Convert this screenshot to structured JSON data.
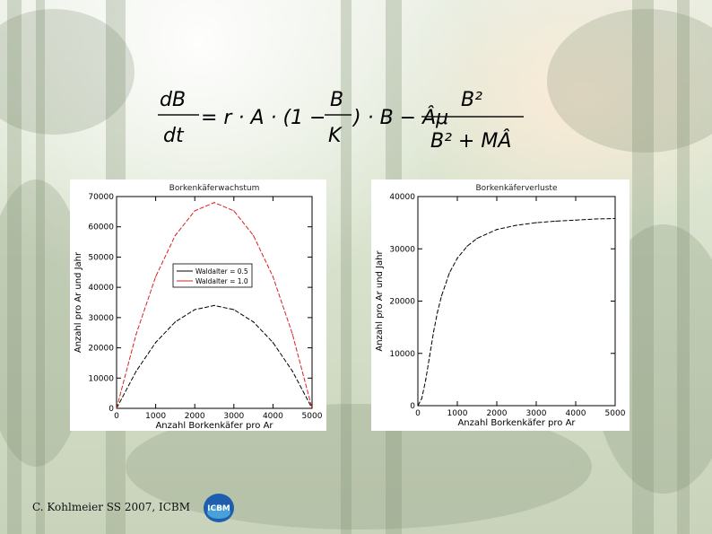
{
  "formula": {
    "lhs_num": "dB",
    "lhs_den": "dt",
    "rhs_1": "= r · A · (1 −",
    "frac_num": "B",
    "frac_den": "K",
    "rhs_2": ") · B − Âμ",
    "frac2_num": "B²",
    "frac2_den": "B² + MÂ"
  },
  "footer": {
    "text": "C. Kohlmeier  SS 2007, ICBM"
  },
  "logo": {
    "text": "ICBM"
  },
  "chart_data": [
    {
      "type": "line",
      "title": "Borkenkäferwachstum",
      "xlabel": "Anzahl Borkenkäfer pro Ar",
      "ylabel": "Anzahl pro Ar und Jahr",
      "xlim": [
        0,
        5000
      ],
      "ylim": [
        0,
        70000
      ],
      "xticks": [
        0,
        1000,
        2000,
        3000,
        4000,
        5000
      ],
      "yticks": [
        0,
        10000,
        20000,
        30000,
        40000,
        50000,
        60000,
        70000
      ],
      "legend_position": "middle-center",
      "series": [
        {
          "name": "Waldalter = 0.5",
          "color": "#000000",
          "dash": "dashed",
          "x": [
            0,
            500,
            1000,
            1500,
            2000,
            2500,
            3000,
            3500,
            4000,
            4500,
            5000
          ],
          "y": [
            0,
            12240,
            21760,
            28560,
            32640,
            34000,
            32640,
            28560,
            21760,
            12240,
            0
          ]
        },
        {
          "name": "Waldalter = 1.0",
          "color": "#d62020",
          "dash": "dashed",
          "x": [
            0,
            500,
            1000,
            1500,
            2000,
            2500,
            3000,
            3500,
            4000,
            4500,
            5000
          ],
          "y": [
            0,
            24480,
            43520,
            57120,
            65280,
            68000,
            65280,
            57120,
            43520,
            24480,
            0
          ]
        }
      ]
    },
    {
      "type": "line",
      "title": "Borkenkäferverluste",
      "xlabel": "Anzahl Borkenkäfer pro Ar",
      "ylabel": "Anzahl pro Ar und Jahr",
      "xlim": [
        0,
        5000
      ],
      "ylim": [
        0,
        40000
      ],
      "xticks": [
        0,
        1000,
        2000,
        3000,
        4000,
        5000
      ],
      "yticks": [
        0,
        10000,
        20000,
        30000,
        40000
      ],
      "series": [
        {
          "color": "#000000",
          "dash": "dashed",
          "x": [
            0,
            100,
            200,
            300,
            400,
            500,
            600,
            800,
            1000,
            1250,
            1500,
            2000,
            2500,
            3000,
            3500,
            4000,
            4500,
            5000
          ],
          "y": [
            0,
            1400,
            5000,
            9600,
            14200,
            18000,
            21000,
            25400,
            28200,
            30500,
            32000,
            33700,
            34500,
            35000,
            35300,
            35500,
            35700,
            35800
          ]
        }
      ]
    }
  ]
}
